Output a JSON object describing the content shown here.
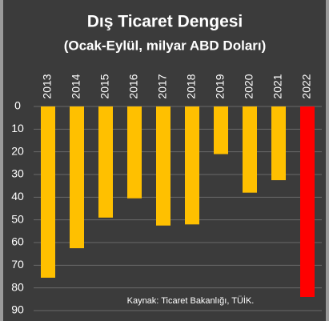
{
  "chart_data": {
    "type": "bar",
    "title": "Dış Ticaret Dengesi",
    "subtitle": "(Ocak-Eylül, milyar ABD Doları)",
    "annotation": "Kaynak: Ticaret Bakanlığı, TÜİK.",
    "categories": [
      "2013",
      "2014",
      "2015",
      "2016",
      "2017",
      "2018",
      "2019",
      "2020",
      "2021",
      "2022"
    ],
    "values": [
      75.5,
      62.5,
      49,
      40.5,
      52.5,
      52,
      21,
      38,
      32.5,
      84
    ],
    "colors": [
      "#ffc000",
      "#ffc000",
      "#ffc000",
      "#ffc000",
      "#ffc000",
      "#ffc000",
      "#ffc000",
      "#ffc000",
      "#ffc000",
      "#ff0000"
    ],
    "ylim": [
      0,
      90
    ],
    "yticks": [
      0,
      10,
      20,
      30,
      40,
      50,
      60,
      70,
      80,
      90
    ],
    "y_inverted": true,
    "grid": true
  }
}
